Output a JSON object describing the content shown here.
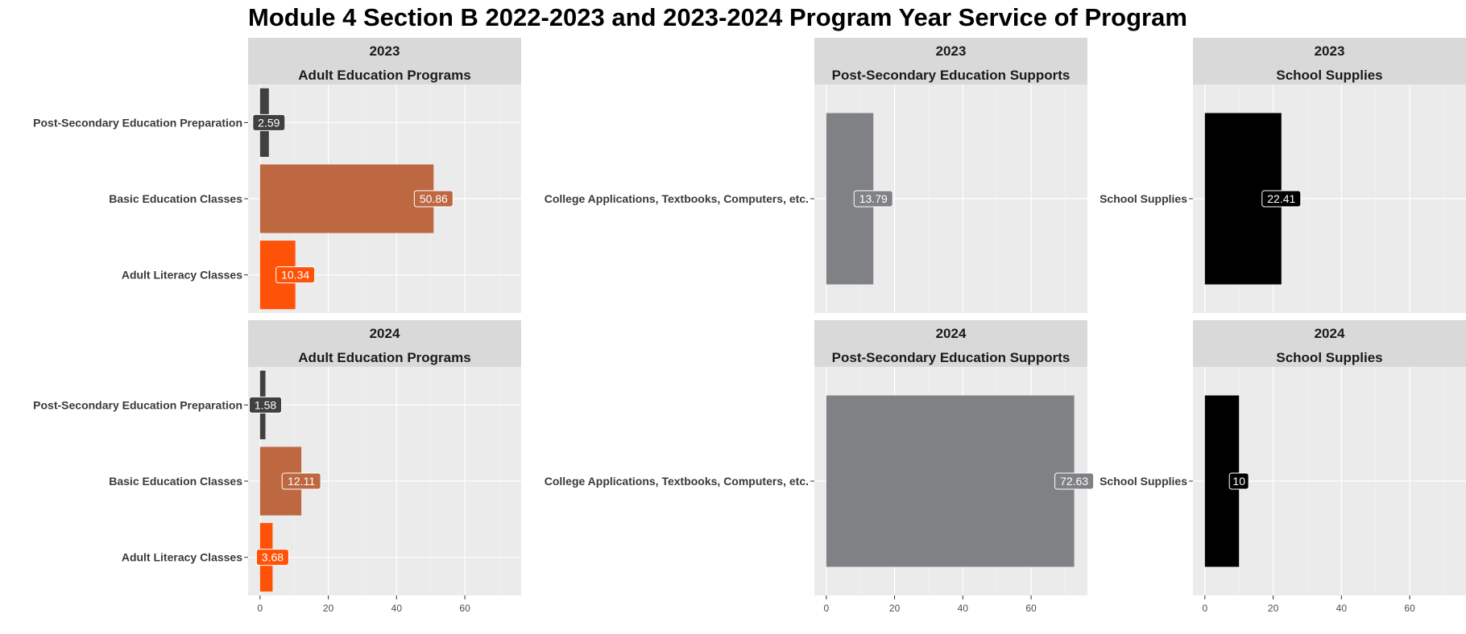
{
  "chart_data": {
    "type": "bar",
    "orientation": "horizontal",
    "title": "Module 4 Section B 2022-2023 and 2023-2024 Program Year Service of Program",
    "xlim": [
      -3.5,
      76.5
    ],
    "x_ticks": [
      0,
      20,
      40,
      60
    ],
    "x_tick_labels": [
      "0",
      "20",
      "40",
      "60"
    ],
    "grid": true,
    "legend": "none",
    "panels": [
      {
        "year": "2023",
        "group": "Adult Education Programs",
        "categories": [
          "Post-Secondary Education Preparation",
          "Basic Education Classes",
          "Adult Literacy Classes"
        ],
        "values": [
          2.59,
          50.86,
          10.34
        ],
        "value_labels": [
          "2.59",
          "50.86",
          "10.34"
        ],
        "colors": [
          "#404040",
          "#BE6842",
          "#FF5209"
        ]
      },
      {
        "year": "2023",
        "group": "Post-Secondary Education Supports",
        "categories": [
          "College Applications, Textbooks, Computers, etc."
        ],
        "values": [
          13.79
        ],
        "value_labels": [
          "13.79"
        ],
        "colors": [
          "#808184"
        ]
      },
      {
        "year": "2023",
        "group": "School Supplies",
        "categories": [
          "School Supplies"
        ],
        "values": [
          22.41
        ],
        "value_labels": [
          "22.41"
        ],
        "colors": [
          "#000000"
        ]
      },
      {
        "year": "2024",
        "group": "Adult Education Programs",
        "categories": [
          "Post-Secondary Education Preparation",
          "Basic Education Classes",
          "Adult Literacy Classes"
        ],
        "values": [
          1.58,
          12.11,
          3.68
        ],
        "value_labels": [
          "1.58",
          "12.11",
          "3.68"
        ],
        "colors": [
          "#404040",
          "#BE6842",
          "#FF5209"
        ]
      },
      {
        "year": "2024",
        "group": "Post-Secondary Education Supports",
        "categories": [
          "College Applications, Textbooks, Computers, etc."
        ],
        "values": [
          72.63
        ],
        "value_labels": [
          "72.63"
        ],
        "colors": [
          "#808184"
        ]
      },
      {
        "year": "2024",
        "group": "School Supplies",
        "categories": [
          "School Supplies"
        ],
        "values": [
          10
        ],
        "value_labels": [
          "10"
        ],
        "colors": [
          "#000000"
        ]
      }
    ]
  }
}
